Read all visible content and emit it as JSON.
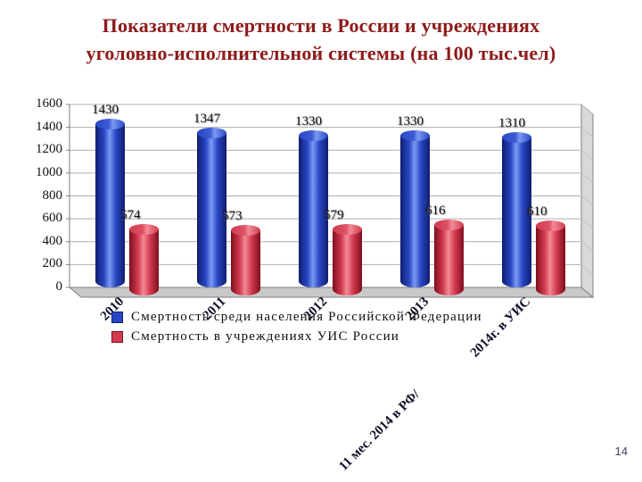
{
  "slide": {
    "title_line1": "Показатели смертности в России и учреждениях",
    "title_line2": "уголовно-исполнительной системы (на 100 тыс.чел)",
    "title_color": "#8E1B1B",
    "page_number": "14"
  },
  "chart_data": {
    "type": "bar",
    "style": "3d-cylinder",
    "title": "Показатели смертности в России и учреждениях уголовно-исполнительной системы (на 100 тыс.чел)",
    "categories": [
      "2010",
      "2011",
      "2012",
      "2013",
      "11 мес. 2014 в РФ/ 2014г. в УИС"
    ],
    "series": [
      {
        "name": "Смертность среди населения Российской Федерации",
        "values": [
          1430,
          1347,
          1330,
          1330,
          1310
        ],
        "color": "#2847C4",
        "color_dark": "#101E6E",
        "color_light": "#7C99F2",
        "color_top": "#3D5BD4"
      },
      {
        "name": "Смертность в учреждениях УИС России",
        "values": [
          574,
          573,
          579,
          616,
          610
        ],
        "color": "#D23B4F",
        "color_dark": "#7E0E1E",
        "color_light": "#F28A96",
        "color_top": "#DC5265"
      }
    ],
    "ylim": [
      0,
      1600
    ],
    "yticks": [
      0,
      200,
      400,
      600,
      800,
      1000,
      1200,
      1400,
      1600
    ],
    "grid": true,
    "legend_position": "bottom-left",
    "walls": {
      "floor_fill": "#C9C9C9",
      "wall_fill": "#D9D9D9",
      "edge": "#7F7F7F",
      "gridline": "#AFAFAF"
    }
  }
}
